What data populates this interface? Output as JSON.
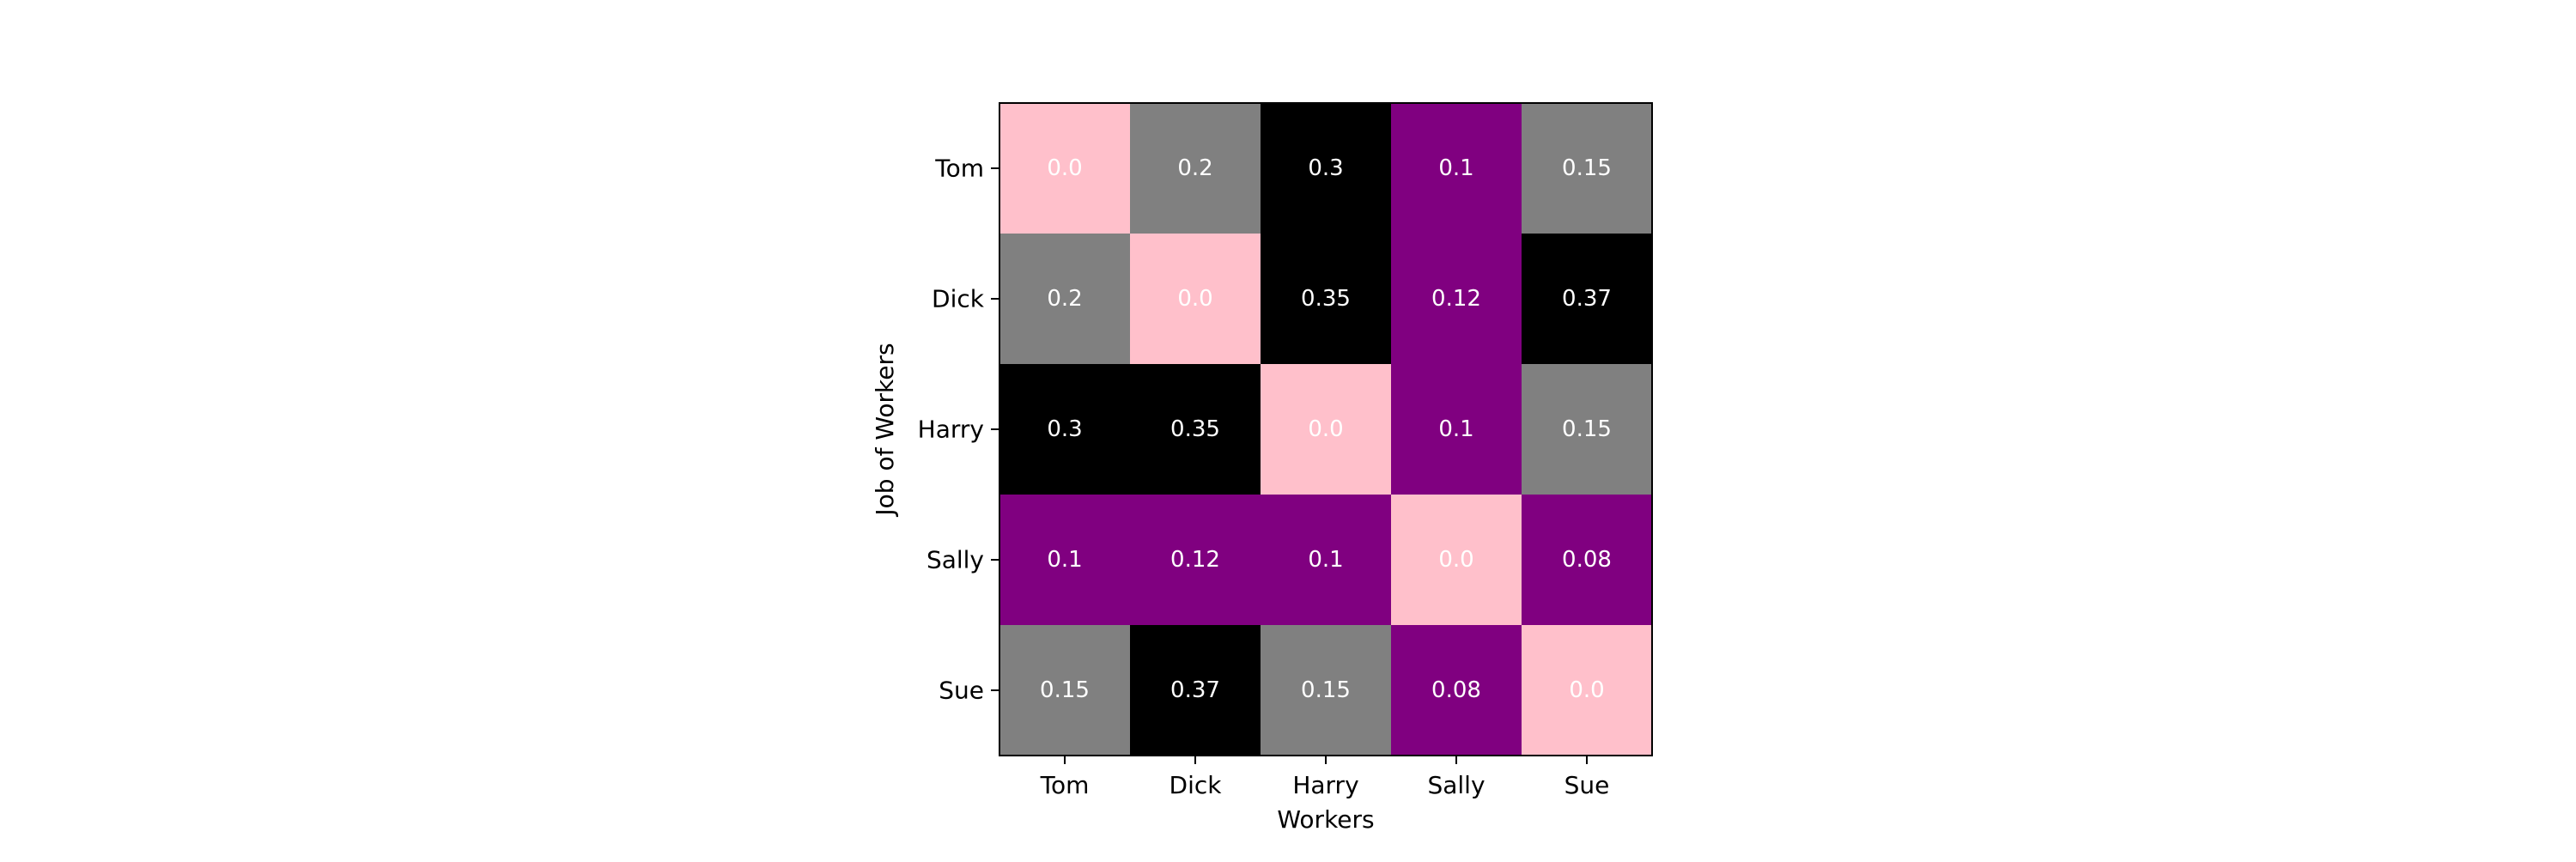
{
  "chart_data": {
    "type": "heatmap",
    "title": "",
    "xlabel": "Workers",
    "ylabel": "Job of Workers",
    "x_categories": [
      "Tom",
      "Dick",
      "Harry",
      "Sally",
      "Sue"
    ],
    "y_categories": [
      "Tom",
      "Dick",
      "Harry",
      "Sally",
      "Sue"
    ],
    "values": [
      [
        "0.0",
        "0.2",
        "0.3",
        "0.1",
        "0.15"
      ],
      [
        "0.2",
        "0.0",
        "0.35",
        "0.12",
        "0.37"
      ],
      [
        "0.3",
        "0.35",
        "0.0",
        "0.1",
        "0.15"
      ],
      [
        "0.1",
        "0.12",
        "0.1",
        "0.0",
        "0.08"
      ],
      [
        "0.15",
        "0.37",
        "0.15",
        "0.08",
        "0.0"
      ]
    ],
    "colormap": [
      {
        "max": 0.0,
        "color": "#ffc0cb"
      },
      {
        "max": 0.13,
        "color": "#800080"
      },
      {
        "max": 0.2,
        "color": "#808080"
      },
      {
        "max": 1.0,
        "color": "#000000"
      }
    ],
    "cell_label_color": "#ffffff",
    "grid": false,
    "legend": "none"
  }
}
